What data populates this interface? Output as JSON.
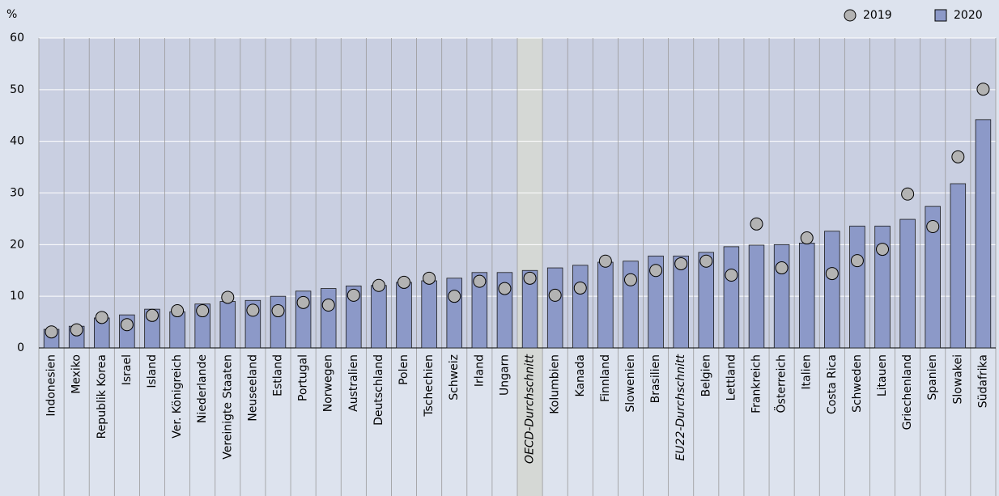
{
  "chart_data": {
    "type": "bar_dot",
    "y_label": "%",
    "categories": [
      "Indonesien",
      "Mexiko",
      "Republik Korea",
      "Israel",
      "Island",
      "Ver. Königreich",
      "Niederlande",
      "Vereinigte Staaten",
      "Neuseeland",
      "Estland",
      "Portugal",
      "Norwegen",
      "Australien",
      "Deutschland",
      "Polen",
      "Tschechien",
      "Schweiz",
      "Irland",
      "Ungarn",
      "OECD-Durchschnitt",
      "Kolumbien",
      "Kanada",
      "Finnland",
      "Slowenien",
      "Brasilien",
      "EU22-Durchschnitt",
      "Belgien",
      "Lettland",
      "Frankreich",
      "Österreich",
      "Italien",
      "Costa Rica",
      "Schweden",
      "Litauen",
      "Griechenland",
      "Spanien",
      "Slowakei",
      "Südafrika"
    ],
    "series": [
      {
        "name": "2020",
        "kind": "bar",
        "color": "#8c99c8",
        "values": [
          3.6,
          4.2,
          5.8,
          6.4,
          7.5,
          7.0,
          8.5,
          9.0,
          9.2,
          10.0,
          11.0,
          11.5,
          12.0,
          12.1,
          12.7,
          13.0,
          13.5,
          14.6,
          14.6,
          15.0,
          15.5,
          16.0,
          16.6,
          16.8,
          17.8,
          17.8,
          18.5,
          19.6,
          19.9,
          20.0,
          20.3,
          22.6,
          23.6,
          23.6,
          24.9,
          27.4,
          31.8,
          44.2
        ]
      },
      {
        "name": "2019",
        "kind": "dot",
        "color": "#b3b3b3",
        "values": [
          3.1,
          3.5,
          5.9,
          4.5,
          6.3,
          7.2,
          7.2,
          9.8,
          7.3,
          7.2,
          8.8,
          8.3,
          10.2,
          12.1,
          12.7,
          13.5,
          10.0,
          12.9,
          11.5,
          13.5,
          10.2,
          11.6,
          16.8,
          13.2,
          15.0,
          16.3,
          16.8,
          14.1,
          24.0,
          15.5,
          21.3,
          14.4,
          16.9,
          19.1,
          29.8,
          23.5,
          37.0,
          50.1
        ]
      }
    ],
    "legend_order": [
      1,
      0
    ],
    "highlight_index": 19,
    "italic_indices": [
      19,
      25
    ],
    "ylim": [
      0,
      60
    ],
    "yticks": [
      0,
      10,
      20,
      30,
      40,
      50,
      60
    ],
    "grid": true
  }
}
